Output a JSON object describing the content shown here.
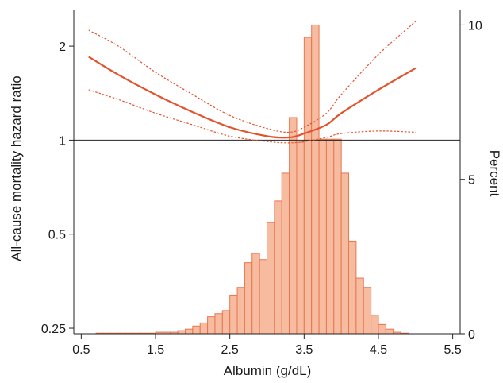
{
  "colors": {
    "hist_fill": "#f7bba0",
    "hist_stroke": "#e8764f",
    "curve": "#e2532d",
    "axis": "#222222",
    "reference_line": "#222222"
  },
  "chart_data": {
    "type": "histogram_with_spline",
    "xlabel": "Albumin (g/dL)",
    "ylabel_left": "All-cause mortality hazard ratio",
    "ylabel_right": "Percent",
    "x_ticks": [
      "0.5",
      "1.5",
      "2.5",
      "3.5",
      "4.5",
      "5.5"
    ],
    "xlim": [
      0.4,
      5.6
    ],
    "left_axis": {
      "scale": "log",
      "ticks": [
        "0.25",
        "0.5",
        "1",
        "2"
      ],
      "ylim": [
        0.24,
        2.62
      ]
    },
    "right_axis": {
      "ticks": [
        "0",
        "5",
        "10"
      ],
      "ylim": [
        0,
        10.5
      ]
    },
    "reference_line_hr": 1,
    "histogram": {
      "bin_width": 0.1,
      "bins": [
        [
          0.5,
          0
        ],
        [
          0.6,
          0
        ],
        [
          0.7,
          0.02
        ],
        [
          0.8,
          0.02
        ],
        [
          0.9,
          0.02
        ],
        [
          1.0,
          0.02
        ],
        [
          1.1,
          0.02
        ],
        [
          1.2,
          0.02
        ],
        [
          1.3,
          0.02
        ],
        [
          1.4,
          0.02
        ],
        [
          1.5,
          0.05
        ],
        [
          1.6,
          0.05
        ],
        [
          1.7,
          0.05
        ],
        [
          1.8,
          0.1
        ],
        [
          1.9,
          0.15
        ],
        [
          2.0,
          0.25
        ],
        [
          2.1,
          0.35
        ],
        [
          2.2,
          0.55
        ],
        [
          2.3,
          0.65
        ],
        [
          2.4,
          0.75
        ],
        [
          2.5,
          1.25
        ],
        [
          2.6,
          1.5
        ],
        [
          2.7,
          2.3
        ],
        [
          2.8,
          2.6
        ],
        [
          2.9,
          2.4
        ],
        [
          3.0,
          3.6
        ],
        [
          3.1,
          4.3
        ],
        [
          3.2,
          5.2
        ],
        [
          3.3,
          7.0
        ],
        [
          3.4,
          6.2
        ],
        [
          3.5,
          9.6
        ],
        [
          3.6,
          10.0
        ],
        [
          3.7,
          6.3
        ],
        [
          3.8,
          6.3
        ],
        [
          3.9,
          6.3
        ],
        [
          4.0,
          5.2
        ],
        [
          4.1,
          3.0
        ],
        [
          4.2,
          1.8
        ],
        [
          4.3,
          1.5
        ],
        [
          4.4,
          0.6
        ],
        [
          4.5,
          0.3
        ],
        [
          4.6,
          0.15
        ],
        [
          4.7,
          0.05
        ],
        [
          4.8,
          0.02
        ],
        [
          4.9,
          0
        ]
      ]
    },
    "hazard_ratio_curve": {
      "x": [
        0.6,
        1.0,
        1.5,
        2.0,
        2.5,
        3.0,
        3.3,
        3.5,
        3.8,
        4.0,
        4.5,
        5.0
      ],
      "estimate": [
        1.85,
        1.62,
        1.4,
        1.23,
        1.1,
        1.03,
        1.02,
        1.05,
        1.12,
        1.22,
        1.45,
        1.7
      ],
      "ci_lower": [
        1.45,
        1.35,
        1.22,
        1.12,
        1.03,
        0.99,
        0.98,
        0.99,
        1.02,
        1.05,
        1.07,
        1.06
      ],
      "ci_upper": [
        2.25,
        2.0,
        1.65,
        1.4,
        1.2,
        1.09,
        1.06,
        1.1,
        1.22,
        1.4,
        1.88,
        2.4
      ]
    },
    "grid": false,
    "legend": "none"
  }
}
